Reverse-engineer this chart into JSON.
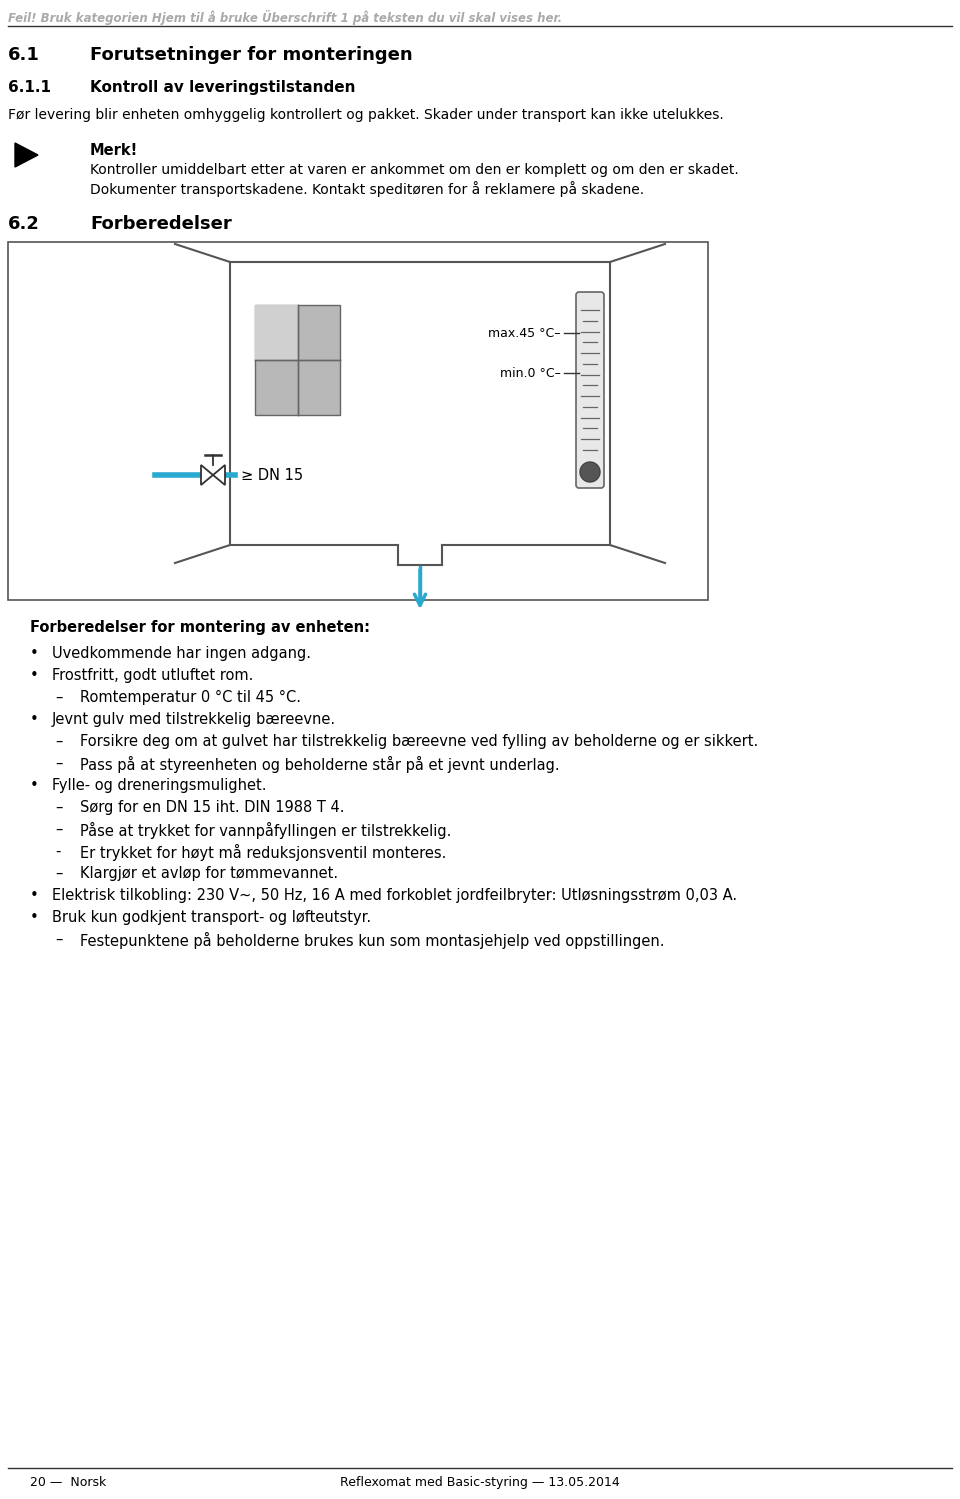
{
  "bg_color": "#ffffff",
  "header_error_text": "Feil! Bruk kategorien Hjem til å bruke Überschrift 1 på teksten du vil skal vises her.",
  "header_error_color": "#aaaaaa",
  "section_61": "6.1",
  "section_61_title": "Forutsetninger for monteringen",
  "section_611": "6.1.1",
  "section_611_title": "Kontroll av leveringstilstanden",
  "para1": "Før levering blir enheten omhyggelig kontrollert og pakket. Skader under transport kan ikke utelukkes.",
  "note_title": "Merk!",
  "note_text1": "Kontroller umiddelbart etter at varen er ankommet om den er komplett og om den er skadet.",
  "note_text2": "Dokumenter transportskadene. Kontakt speditøren for å reklamere på skadene.",
  "section_62": "6.2",
  "section_62_title": "Forberedelser",
  "diagram_label_max": "max.45 °C–",
  "diagram_label_min": "min.0 °C–",
  "diagram_dn": "≥ DN 15",
  "bullet_header": "Forberedelser for montering av enheten:",
  "bullets": [
    {
      "level": 1,
      "marker": "•",
      "text": "Uvedkommende har ingen adgang."
    },
    {
      "level": 1,
      "marker": "•",
      "text": "Frostfritt, godt utluftet rom."
    },
    {
      "level": 2,
      "marker": "–",
      "text": "Romtemperatur 0 °C til 45 °C."
    },
    {
      "level": 1,
      "marker": "•",
      "text": "Jevnt gulv med tilstrekkelig bæreevne."
    },
    {
      "level": 2,
      "marker": "–",
      "text": "Forsikre deg om at gulvet har tilstrekkelig bæreevne ved fylling av beholderne og er sikkert."
    },
    {
      "level": 2,
      "marker": "–",
      "text": "Pass på at styreenheten og beholderne står på et jevnt underlag."
    },
    {
      "level": 1,
      "marker": "•",
      "text": "Fylle- og dreneringsmulighet."
    },
    {
      "level": 2,
      "marker": "–",
      "text": "Sørg for en DN 15 iht. DIN 1988 T 4."
    },
    {
      "level": 2,
      "marker": "–",
      "text": "Påse at trykket for vannpåfyllingen er tilstrekkelig."
    },
    {
      "level": 2,
      "marker": "-",
      "text": "Er trykket for høyt må reduksjonsventil monteres."
    },
    {
      "level": 2,
      "marker": "–",
      "text": "Klargjør et avløp for tømmevannet."
    },
    {
      "level": 1,
      "marker": "•",
      "text": "Elektrisk tilkobling: 230 V~, 50 Hz, 16 A med forkoblet jordfeilbryter: Utløsningsstrøm 0,03 A."
    },
    {
      "level": 1,
      "marker": "•",
      "text": "Bruk kun godkjent transport- og løfteutstyr."
    },
    {
      "level": 2,
      "marker": "–",
      "text": "Festepunktene på beholderne brukes kun som montasjehjelp ved oppstillingen."
    }
  ],
  "footer_page": "20 —  Norsk",
  "footer_center": "Reflexomat med Basic-styring — 13.05.2014",
  "cyan_color": "#29a8d0",
  "text_color": "#000000",
  "line_color": "#555555",
  "diagram_line_color": "#555555"
}
